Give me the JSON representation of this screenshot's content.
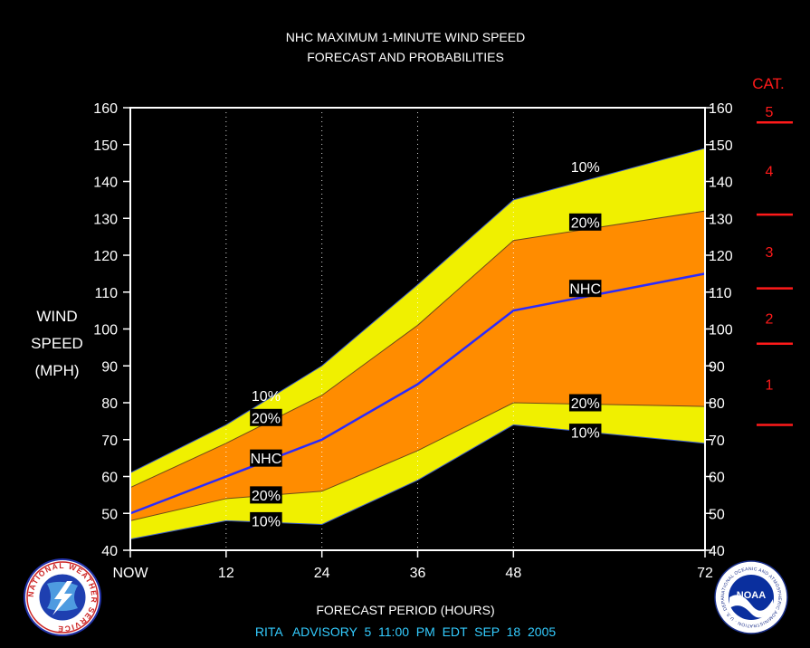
{
  "chart_data": {
    "type": "area",
    "title": "NHC MAXIMUM 1-MINUTE WIND SPEED",
    "subtitle": "FORECAST AND PROBABILITIES",
    "ylabel": [
      "WIND",
      "SPEED",
      "(MPH)"
    ],
    "xlabel": "FORECAST PERIOD (HOURS)",
    "footer": "RITA   ADVISORY  5  11:00  PM  EDT  SEP  18  2005",
    "xlim": [
      0,
      72
    ],
    "ylim": [
      40,
      160
    ],
    "x_ticks": [
      {
        "x": 0,
        "label": "NOW"
      },
      {
        "x": 12,
        "label": "12"
      },
      {
        "x": 24,
        "label": "24"
      },
      {
        "x": 36,
        "label": "36"
      },
      {
        "x": 48,
        "label": "48"
      },
      {
        "x": 72,
        "label": "72"
      }
    ],
    "y_ticks": [
      40,
      50,
      60,
      70,
      80,
      90,
      100,
      110,
      120,
      130,
      140,
      150,
      160
    ],
    "grid_x": [
      12,
      24,
      36,
      48
    ],
    "x": [
      0,
      12,
      24,
      36,
      48,
      72
    ],
    "series": [
      {
        "name": "NHC",
        "values": [
          50,
          60,
          70,
          85,
          105,
          115
        ]
      },
      {
        "values": [
          57,
          69,
          82,
          101,
          124,
          132
        ]
      },
      {
        "values": [
          48,
          54,
          56,
          67,
          80,
          79
        ]
      },
      {
        "values": [
          61,
          74,
          90,
          112,
          135,
          149
        ]
      },
      {
        "values": [
          43,
          48,
          47,
          59,
          74,
          69
        ]
      }
    ],
    "series_labels": [
      {
        "text": "10%",
        "x": 17,
        "y": 82,
        "boxed": false
      },
      {
        "text": "20%",
        "x": 17,
        "y": 76,
        "boxed": true
      },
      {
        "text": "NHC",
        "x": 17,
        "y": 65,
        "boxed": true
      },
      {
        "text": "20%",
        "x": 17,
        "y": 55,
        "boxed": true
      },
      {
        "text": "10%",
        "x": 17,
        "y": 48,
        "boxed": true
      },
      {
        "text": "10%",
        "x": 57,
        "y": 144,
        "boxed": true
      },
      {
        "text": "20%",
        "x": 57,
        "y": 129,
        "boxed": true
      },
      {
        "text": "NHC",
        "x": 57,
        "y": 111,
        "boxed": true
      },
      {
        "text": "20%",
        "x": 57,
        "y": 80,
        "boxed": true
      },
      {
        "text": "10%",
        "x": 57,
        "y": 72,
        "boxed": true
      }
    ],
    "colors": {
      "outer_band": "#f0f000",
      "inner_band": "#ff8c00",
      "nhc_line": "#2a2aff",
      "category": "#ff1a1a",
      "footer": "#33ccff",
      "axis": "#ffffff",
      "background": "#000000"
    },
    "saffir_simpson": {
      "title": "CAT.",
      "thresholds": [
        74,
        96,
        111,
        131,
        156
      ],
      "categories": [
        {
          "label": "1",
          "y": 85
        },
        {
          "label": "2",
          "y": 103
        },
        {
          "label": "3",
          "y": 121
        },
        {
          "label": "4",
          "y": 143
        },
        {
          "label": "5",
          "y": 159
        }
      ]
    }
  },
  "logos": {
    "left": {
      "name": "National Weather Service",
      "text": "NATIONAL WEATHER SERVICE"
    },
    "right": {
      "name": "NOAA",
      "text": "NOAA",
      "ring_text": "NATIONAL OCEANIC AND ATMOSPHERIC ADMINISTRATION · U.S. DEPARTMENT OF COMMERCE"
    }
  }
}
